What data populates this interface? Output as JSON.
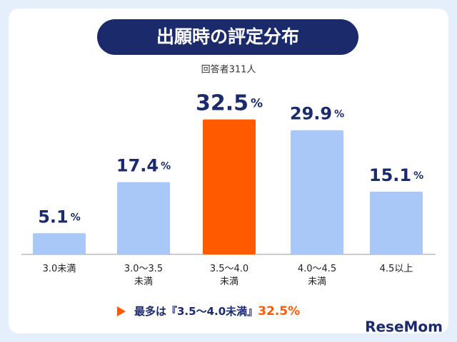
{
  "chart_data": {
    "type": "bar",
    "title": "出願時の評定分布",
    "subtitle": "回答者311人",
    "categories": [
      "3.0未満",
      "3.0～3.5\n未満",
      "3.5～4.0\n未満",
      "4.0～4.5\n未満",
      "4.5以上"
    ],
    "values": [
      5.1,
      17.4,
      32.5,
      29.9,
      15.1
    ],
    "value_labels": [
      "5.1%",
      "17.4%",
      "32.5%",
      "29.9%",
      "15.1%"
    ],
    "colors": [
      "#a9c8f7",
      "#a9c8f7",
      "#ff5a00",
      "#a9c8f7",
      "#a9c8f7"
    ],
    "ylim": [
      0,
      35
    ],
    "annotation": [
      "最多は『3.5～4.0未満』",
      "32.5%"
    ],
    "watermark": "ReseMom"
  }
}
